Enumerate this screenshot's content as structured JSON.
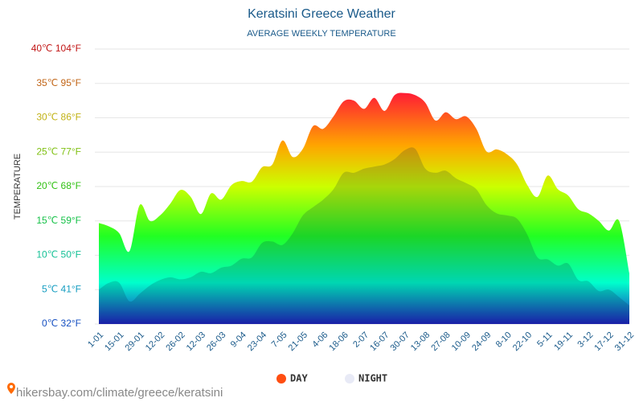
{
  "chart_data": {
    "type": "area",
    "title": "Keratsini Greece Weather",
    "subtitle": "AVERAGE WEEKLY TEMPERATURE",
    "y_label": "TEMPERATURE",
    "source": "hikersbay.com/climate/greece/keratsini",
    "categories": [
      "1-01",
      null,
      "15-01",
      null,
      "29-01",
      null,
      "12-02",
      null,
      "26-02",
      null,
      "12-03",
      null,
      "26-03",
      null,
      "9-04",
      null,
      "23-04",
      null,
      "7-05",
      null,
      "21-05",
      null,
      "4-06",
      null,
      "18-06",
      null,
      "2-07",
      null,
      "16-07",
      null,
      "30-07",
      null,
      "13-08",
      null,
      "27-08",
      null,
      "10-09",
      null,
      "24-09",
      null,
      "8-10",
      null,
      "22-10",
      null,
      "5-11",
      null,
      "19-11",
      null,
      "3-12",
      null,
      "17-12",
      null,
      "31-12"
    ],
    "series": [
      {
        "name": "DAY",
        "color": "#ff4e11",
        "values": [
          14.7,
          14.2,
          13.2,
          10.6,
          17.3,
          15,
          15.8,
          17.5,
          19.5,
          18.5,
          16,
          19,
          18.1,
          20.2,
          20.8,
          20.7,
          22.8,
          23.2,
          26.7,
          24.3,
          25.5,
          28.8,
          28.4,
          30.2,
          32.4,
          32.5,
          31.3,
          32.9,
          31,
          33.3,
          33.6,
          33.3,
          32.2,
          29.6,
          30.8,
          29.8,
          30.2,
          28.4,
          25.1,
          25.4,
          24.7,
          23.2,
          20.2,
          18.5,
          21.6,
          19.6,
          18.7,
          16.7,
          16.1,
          15,
          13.6,
          15,
          7.4
        ]
      },
      {
        "name": "NIGHT",
        "color": "#e8eaf6",
        "values": [
          5,
          6,
          6,
          3.3,
          4.4,
          5.6,
          6.4,
          6.8,
          6.5,
          6.8,
          7.6,
          7.4,
          8.2,
          8.5,
          9.5,
          9.7,
          11.8,
          12,
          11.5,
          13.2,
          15.8,
          17,
          18.1,
          19.6,
          22,
          22,
          22.6,
          22.9,
          23.2,
          24,
          25.3,
          25.5,
          22.6,
          22,
          22.3,
          21.2,
          20.5,
          19.6,
          17.3,
          16.1,
          15.8,
          15.3,
          13,
          9.7,
          9.4,
          8.5,
          8.8,
          6.4,
          6.2,
          4.8,
          5,
          3.9,
          2.7
        ]
      }
    ],
    "ylim": [
      0,
      40
    ],
    "yticks": [
      {
        "value": 0,
        "label": "0℃ 32°F"
      },
      {
        "value": 5,
        "label": "5℃ 41°F"
      },
      {
        "value": 10,
        "label": "10℃ 50°F"
      },
      {
        "value": 15,
        "label": "15℃ 59°F"
      },
      {
        "value": 20,
        "label": "20℃ 68°F"
      },
      {
        "value": 25,
        "label": "25℃ 77°F"
      },
      {
        "value": 30,
        "label": "30℃ 86°F"
      },
      {
        "value": 35,
        "label": "35℃ 95°F"
      },
      {
        "value": 40,
        "label": "40℃ 104°F"
      }
    ],
    "grid": true
  }
}
